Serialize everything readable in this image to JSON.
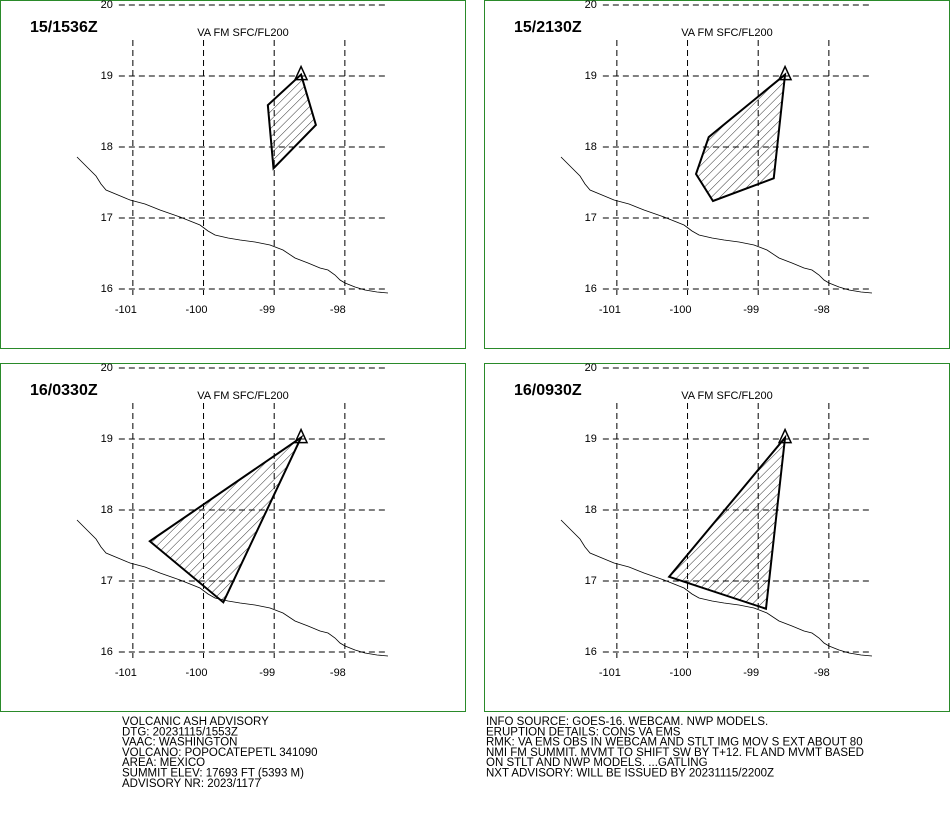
{
  "map": {
    "xlim": [
      -102.88,
      -96.3
    ],
    "ylim": [
      15.17,
      20.07
    ],
    "lon_ticks": [
      -101,
      -100,
      -99,
      -98
    ],
    "lat_ticks": [
      16,
      17,
      18,
      19,
      20
    ],
    "summit": [
      -98.62,
      19.02
    ]
  },
  "panels": [
    {
      "time": "15/1536Z",
      "level": "VA FM SFC/FL200",
      "polygon": [
        [
          -98.62,
          19.02
        ],
        [
          -98.41,
          18.31
        ],
        [
          -99.01,
          17.7
        ],
        [
          -99.09,
          18.59
        ]
      ]
    },
    {
      "time": "15/2130Z",
      "level": "VA FM SFC/FL200",
      "polygon": [
        [
          -98.62,
          19.02
        ],
        [
          -98.78,
          17.56
        ],
        [
          -99.64,
          17.24
        ],
        [
          -99.88,
          17.62
        ],
        [
          -99.7,
          18.14
        ]
      ]
    },
    {
      "time": "16/0330Z",
      "level": "VA FM SFC/FL200",
      "polygon": [
        [
          -98.62,
          19.02
        ],
        [
          -99.72,
          16.7
        ],
        [
          -100.76,
          17.56
        ]
      ]
    },
    {
      "time": "16/0930Z",
      "level": "VA FM SFC/FL200",
      "polygon": [
        [
          -98.62,
          19.02
        ],
        [
          -98.89,
          16.61
        ],
        [
          -100.26,
          17.06
        ]
      ]
    }
  ],
  "advisory_left": [
    "VOLCANIC ASH ADVISORY",
    "DTG: 20231115/1553Z",
    "VAAC: WASHINGTON",
    "VOLCANO: POPOCATEPETL 341090",
    "AREA: MEXICO",
    "SUMMIT ELEV: 17693 FT (5393 M)",
    "ADVISORY NR: 2023/1177"
  ],
  "advisory_right": [
    "INFO SOURCE: GOES-16. WEBCAM. NWP MODELS.",
    "ERUPTION DETAILS: CONS VA EMS",
    "RMK: VA EMS OBS IN WEBCAM AND STLT IMG MOV S EXT ABOUT 80",
    "NMI FM SUMMIT. MVMT TO SHIFT SW BY T+12. FL AND MVMT BASED",
    "ON STLT AND NWP MODELS. ...GATLING",
    "NXT ADVISORY: WILL BE ISSUED BY 20231115/2200Z"
  ]
}
